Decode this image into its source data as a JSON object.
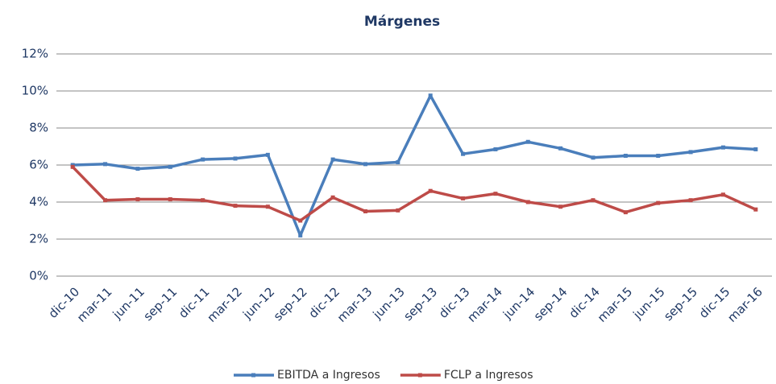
{
  "chart_data": {
    "type": "line",
    "title": "Márgenes",
    "categories": [
      "dic-10",
      "mar-11",
      "jun-11",
      "sep-11",
      "dic-11",
      "mar-12",
      "jun-12",
      "sep-12",
      "dic-12",
      "mar-13",
      "jun-13",
      "sep-13",
      "dic-13",
      "mar-14",
      "jun-14",
      "sep-14",
      "dic-14",
      "mar-15",
      "jun-15",
      "sep-15",
      "dic-15",
      "mar-16"
    ],
    "series": [
      {
        "name": "EBITDA a Ingresos",
        "color": "#4a7ebb",
        "values": [
          6.0,
          6.05,
          5.8,
          5.9,
          6.3,
          6.35,
          6.55,
          2.2,
          6.3,
          6.05,
          6.15,
          9.75,
          6.6,
          6.85,
          7.25,
          6.9,
          6.4,
          6.5,
          6.5,
          6.7,
          6.95,
          6.85
        ]
      },
      {
        "name": "FCLP a Ingresos",
        "color": "#be4b48",
        "values": [
          5.9,
          4.1,
          4.15,
          4.15,
          4.1,
          3.8,
          3.75,
          3.0,
          4.25,
          3.5,
          3.55,
          4.6,
          4.2,
          4.45,
          4.0,
          3.75,
          4.1,
          3.45,
          3.95,
          4.1,
          4.4,
          3.6
        ]
      }
    ],
    "ylim": [
      0,
      12
    ],
    "yticks": [
      {
        "value": 0,
        "label": "0%"
      },
      {
        "value": 2,
        "label": "2%"
      },
      {
        "value": 4,
        "label": "4%"
      },
      {
        "value": 6,
        "label": "6%"
      },
      {
        "value": 8,
        "label": "8%"
      },
      {
        "value": 10,
        "label": "10%"
      },
      {
        "value": 12,
        "label": "12%"
      }
    ],
    "grid": true,
    "legend": "bottom"
  }
}
